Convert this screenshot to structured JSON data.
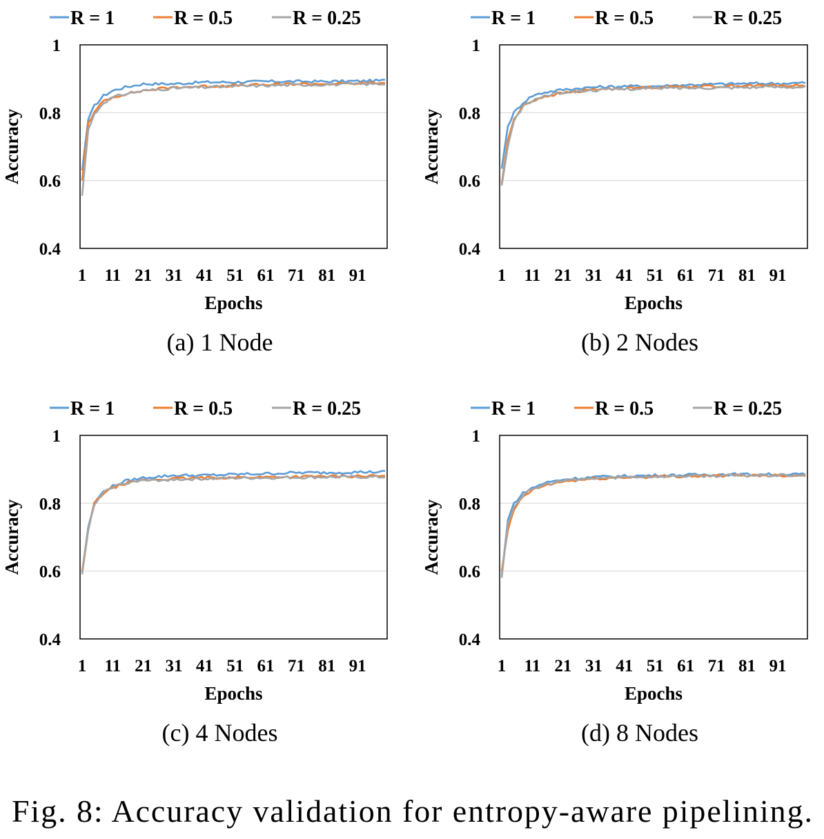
{
  "caption": "Fig. 8: Accuracy validation for entropy-aware pipelining.",
  "colors": {
    "R = 1": "#5b9bd5",
    "R = 0.5": "#ed7d31",
    "R = 0.25": "#a5a5a5"
  },
  "chart_data": [
    {
      "type": "line",
      "subcaption": "(a)  1 Node",
      "xlabel": "Epochs",
      "ylabel": "Accuracy",
      "ylim": [
        0.4,
        1
      ],
      "yticks": [
        "0.4",
        "0.6",
        "0.8",
        "1"
      ],
      "xticks": [
        "1",
        "11",
        "21",
        "31",
        "41",
        "51",
        "61",
        "71",
        "81",
        "91"
      ],
      "x_range": [
        1,
        100
      ],
      "gridlines": true,
      "legend_position": "top",
      "series": [
        {
          "name": "R = 1",
          "points": [
            [
              1,
              0.63
            ],
            [
              3,
              0.78
            ],
            [
              5,
              0.82
            ],
            [
              8,
              0.85
            ],
            [
              11,
              0.865
            ],
            [
              15,
              0.875
            ],
            [
              21,
              0.885
            ],
            [
              31,
              0.885
            ],
            [
              41,
              0.89
            ],
            [
              51,
              0.89
            ],
            [
              61,
              0.892
            ],
            [
              71,
              0.892
            ],
            [
              81,
              0.892
            ],
            [
              91,
              0.893
            ],
            [
              100,
              0.895
            ]
          ]
        },
        {
          "name": "R = 0.5",
          "points": [
            [
              1,
              0.6
            ],
            [
              3,
              0.77
            ],
            [
              5,
              0.8
            ],
            [
              8,
              0.835
            ],
            [
              11,
              0.845
            ],
            [
              15,
              0.855
            ],
            [
              21,
              0.865
            ],
            [
              31,
              0.875
            ],
            [
              41,
              0.878
            ],
            [
              51,
              0.88
            ],
            [
              61,
              0.882
            ],
            [
              71,
              0.885
            ],
            [
              81,
              0.885
            ],
            [
              91,
              0.886
            ],
            [
              100,
              0.888
            ]
          ]
        },
        {
          "name": "R = 0.25",
          "points": [
            [
              1,
              0.555
            ],
            [
              3,
              0.75
            ],
            [
              5,
              0.795
            ],
            [
              8,
              0.83
            ],
            [
              11,
              0.845
            ],
            [
              15,
              0.855
            ],
            [
              21,
              0.865
            ],
            [
              31,
              0.872
            ],
            [
              41,
              0.875
            ],
            [
              51,
              0.878
            ],
            [
              61,
              0.88
            ],
            [
              71,
              0.882
            ],
            [
              81,
              0.883
            ],
            [
              91,
              0.884
            ],
            [
              100,
              0.885
            ]
          ]
        }
      ]
    },
    {
      "type": "line",
      "subcaption": "(b)  2 Nodes",
      "xlabel": "Epochs",
      "ylabel": "Accuracy",
      "ylim": [
        0.4,
        1
      ],
      "yticks": [
        "0.4",
        "0.6",
        "0.8",
        "1"
      ],
      "xticks": [
        "1",
        "11",
        "21",
        "31",
        "41",
        "51",
        "61",
        "71",
        "81",
        "91"
      ],
      "x_range": [
        1,
        100
      ],
      "gridlines": true,
      "legend_position": "top",
      "series": [
        {
          "name": "R = 1",
          "points": [
            [
              1,
              0.635
            ],
            [
              3,
              0.76
            ],
            [
              5,
              0.8
            ],
            [
              8,
              0.83
            ],
            [
              11,
              0.85
            ],
            [
              15,
              0.86
            ],
            [
              21,
              0.868
            ],
            [
              31,
              0.875
            ],
            [
              41,
              0.878
            ],
            [
              51,
              0.878
            ],
            [
              61,
              0.882
            ],
            [
              71,
              0.884
            ],
            [
              81,
              0.886
            ],
            [
              91,
              0.886
            ],
            [
              100,
              0.888
            ]
          ]
        },
        {
          "name": "R = 0.5",
          "points": [
            [
              1,
              0.59
            ],
            [
              3,
              0.72
            ],
            [
              5,
              0.78
            ],
            [
              8,
              0.82
            ],
            [
              11,
              0.835
            ],
            [
              15,
              0.848
            ],
            [
              21,
              0.858
            ],
            [
              31,
              0.868
            ],
            [
              41,
              0.872
            ],
            [
              51,
              0.875
            ],
            [
              61,
              0.877
            ],
            [
              71,
              0.878
            ],
            [
              81,
              0.88
            ],
            [
              91,
              0.88
            ],
            [
              100,
              0.88
            ]
          ]
        },
        {
          "name": "R = 0.25",
          "points": [
            [
              1,
              0.585
            ],
            [
              3,
              0.7
            ],
            [
              5,
              0.775
            ],
            [
              8,
              0.82
            ],
            [
              11,
              0.835
            ],
            [
              15,
              0.85
            ],
            [
              21,
              0.86
            ],
            [
              31,
              0.866
            ],
            [
              41,
              0.87
            ],
            [
              51,
              0.872
            ],
            [
              61,
              0.873
            ],
            [
              71,
              0.874
            ],
            [
              81,
              0.875
            ],
            [
              91,
              0.876
            ],
            [
              100,
              0.876
            ]
          ]
        }
      ]
    },
    {
      "type": "line",
      "subcaption": "(c)  4 Nodes",
      "xlabel": "Epochs",
      "ylabel": "Accuracy",
      "ylim": [
        0.4,
        1
      ],
      "yticks": [
        "0.4",
        "0.6",
        "0.8",
        "1"
      ],
      "xticks": [
        "1",
        "11",
        "21",
        "31",
        "41",
        "51",
        "61",
        "71",
        "81",
        "91"
      ],
      "x_range": [
        1,
        100
      ],
      "gridlines": true,
      "legend_position": "top",
      "series": [
        {
          "name": "R = 1",
          "points": [
            [
              1,
              0.595
            ],
            [
              3,
              0.73
            ],
            [
              5,
              0.8
            ],
            [
              8,
              0.835
            ],
            [
              11,
              0.85
            ],
            [
              15,
              0.865
            ],
            [
              21,
              0.875
            ],
            [
              31,
              0.882
            ],
            [
              41,
              0.882
            ],
            [
              51,
              0.885
            ],
            [
              61,
              0.887
            ],
            [
              71,
              0.89
            ],
            [
              81,
              0.89
            ],
            [
              91,
              0.892
            ],
            [
              100,
              0.892
            ]
          ]
        },
        {
          "name": "R = 0.5",
          "points": [
            [
              1,
              0.6
            ],
            [
              3,
              0.72
            ],
            [
              5,
              0.8
            ],
            [
              8,
              0.83
            ],
            [
              11,
              0.845
            ],
            [
              15,
              0.858
            ],
            [
              21,
              0.868
            ],
            [
              31,
              0.872
            ],
            [
              41,
              0.875
            ],
            [
              51,
              0.876
            ],
            [
              61,
              0.877
            ],
            [
              71,
              0.878
            ],
            [
              81,
              0.879
            ],
            [
              91,
              0.88
            ],
            [
              100,
              0.88
            ]
          ]
        },
        {
          "name": "R = 0.25",
          "points": [
            [
              1,
              0.59
            ],
            [
              3,
              0.72
            ],
            [
              5,
              0.795
            ],
            [
              8,
              0.83
            ],
            [
              11,
              0.848
            ],
            [
              15,
              0.86
            ],
            [
              21,
              0.866
            ],
            [
              31,
              0.87
            ],
            [
              41,
              0.872
            ],
            [
              51,
              0.874
            ],
            [
              61,
              0.875
            ],
            [
              71,
              0.876
            ],
            [
              81,
              0.877
            ],
            [
              91,
              0.877
            ],
            [
              100,
              0.877
            ]
          ]
        }
      ]
    },
    {
      "type": "line",
      "subcaption": "(d)  8 Nodes",
      "xlabel": "Epochs",
      "ylabel": "Accuracy",
      "ylim": [
        0.4,
        1
      ],
      "yticks": [
        "0.4",
        "0.6",
        "0.8",
        "1"
      ],
      "xticks": [
        "1",
        "11",
        "21",
        "31",
        "41",
        "51",
        "61",
        "71",
        "81",
        "91"
      ],
      "x_range": [
        1,
        100
      ],
      "gridlines": true,
      "legend_position": "top",
      "series": [
        {
          "name": "R = 1",
          "points": [
            [
              1,
              0.585
            ],
            [
              3,
              0.75
            ],
            [
              5,
              0.8
            ],
            [
              8,
              0.83
            ],
            [
              11,
              0.845
            ],
            [
              15,
              0.86
            ],
            [
              21,
              0.87
            ],
            [
              31,
              0.877
            ],
            [
              41,
              0.88
            ],
            [
              51,
              0.882
            ],
            [
              61,
              0.883
            ],
            [
              71,
              0.885
            ],
            [
              81,
              0.885
            ],
            [
              91,
              0.885
            ],
            [
              100,
              0.885
            ]
          ]
        },
        {
          "name": "R = 0.5",
          "points": [
            [
              1,
              0.6
            ],
            [
              3,
              0.72
            ],
            [
              5,
              0.78
            ],
            [
              8,
              0.82
            ],
            [
              11,
              0.838
            ],
            [
              15,
              0.852
            ],
            [
              21,
              0.864
            ],
            [
              31,
              0.872
            ],
            [
              41,
              0.876
            ],
            [
              51,
              0.878
            ],
            [
              61,
              0.88
            ],
            [
              71,
              0.881
            ],
            [
              81,
              0.882
            ],
            [
              91,
              0.882
            ],
            [
              100,
              0.882
            ]
          ]
        },
        {
          "name": "R = 0.25",
          "points": [
            [
              1,
              0.58
            ],
            [
              3,
              0.74
            ],
            [
              5,
              0.79
            ],
            [
              8,
              0.825
            ],
            [
              11,
              0.84
            ],
            [
              15,
              0.855
            ],
            [
              21,
              0.866
            ],
            [
              31,
              0.873
            ],
            [
              41,
              0.877
            ],
            [
              51,
              0.879
            ],
            [
              61,
              0.88
            ],
            [
              71,
              0.881
            ],
            [
              81,
              0.882
            ],
            [
              91,
              0.882
            ],
            [
              100,
              0.882
            ]
          ]
        }
      ]
    }
  ]
}
